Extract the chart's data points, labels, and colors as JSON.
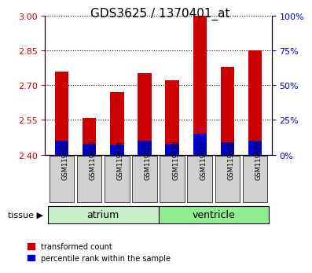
{
  "title": "GDS3625 / 1370401_at",
  "samples": [
    "GSM119422",
    "GSM119423",
    "GSM119424",
    "GSM119425",
    "GSM119426",
    "GSM119427",
    "GSM119428",
    "GSM119429"
  ],
  "red_values": [
    2.76,
    2.56,
    2.67,
    2.75,
    2.72,
    3.0,
    2.78,
    2.85
  ],
  "blue_values": [
    10,
    8,
    7,
    10,
    8,
    15,
    9,
    10
  ],
  "ymin": 2.4,
  "ymax": 3.0,
  "yticks_left": [
    2.4,
    2.55,
    2.7,
    2.85,
    3.0
  ],
  "yticks_right": [
    0,
    25,
    50,
    75,
    100
  ],
  "groups": [
    {
      "label": "atrium",
      "start": 0,
      "end": 4,
      "color": "#c8f0c8"
    },
    {
      "label": "ventricle",
      "start": 4,
      "end": 8,
      "color": "#90ee90"
    }
  ],
  "tissue_label": "tissue",
  "red_color": "#cc0000",
  "blue_color": "#0000cc",
  "bar_width": 0.5,
  "grid_color": "#000000",
  "tick_label_color_left": "#cc0000",
  "tick_label_color_right": "#0000cc",
  "legend_red": "transformed count",
  "legend_blue": "percentile rank within the sample",
  "xlabel_bg": "#d0d0d0"
}
